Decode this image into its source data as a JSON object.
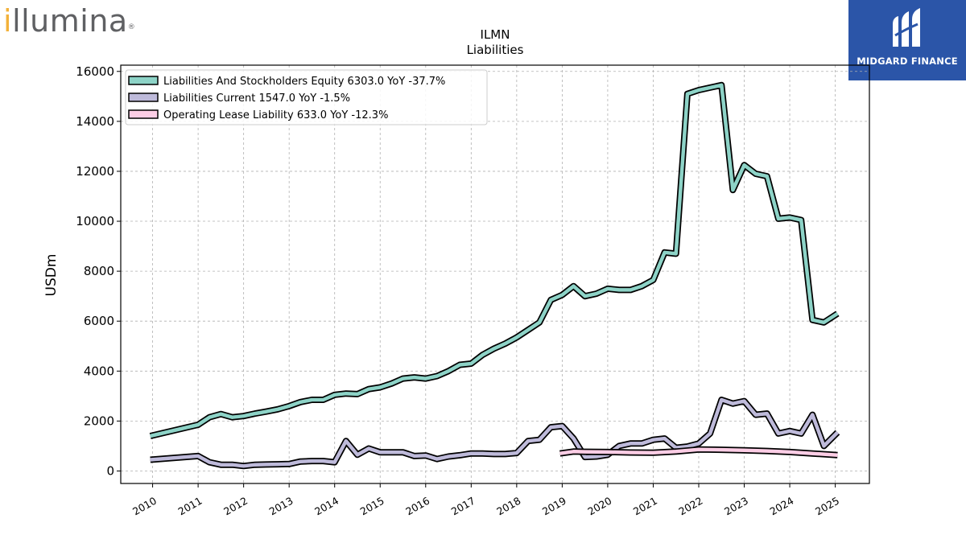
{
  "logos": {
    "left": {
      "text_dot": "i",
      "text_rest": "llumina",
      "mark": "®"
    },
    "right": {
      "text": "MIDGARD FINANCE"
    }
  },
  "chart_data": {
    "type": "line",
    "title": "ILMN",
    "subtitle": "Liabilities",
    "xlabel": "",
    "ylabel": "USDm",
    "xlim": [
      2009.3,
      2025.75
    ],
    "ylim": [
      -500,
      16250
    ],
    "yticks": [
      0,
      2000,
      4000,
      6000,
      8000,
      10000,
      12000,
      14000,
      16000
    ],
    "xticks": [
      "2010",
      "2011",
      "2012",
      "2013",
      "2014",
      "2015",
      "2016",
      "2017",
      "2018",
      "2019",
      "2020",
      "2021",
      "2022",
      "2023",
      "2024",
      "2025"
    ],
    "grid": true,
    "legend_position": "top-left",
    "series": [
      {
        "name": "Liabilities And Stockholders Equity",
        "legend_label": "Liabilities And Stockholders Equity  6303.0 YoY -37.7%",
        "color": "#8dd3c7",
        "points": [
          [
            2009.95,
            1400
          ],
          [
            2011.0,
            1850
          ],
          [
            2011.25,
            2150
          ],
          [
            2011.5,
            2280
          ],
          [
            2011.75,
            2150
          ],
          [
            2012.0,
            2200
          ],
          [
            2012.25,
            2300
          ],
          [
            2012.5,
            2380
          ],
          [
            2012.75,
            2470
          ],
          [
            2013.0,
            2600
          ],
          [
            2013.25,
            2760
          ],
          [
            2013.5,
            2850
          ],
          [
            2013.75,
            2850
          ],
          [
            2014.0,
            3050
          ],
          [
            2014.25,
            3100
          ],
          [
            2014.5,
            3080
          ],
          [
            2014.75,
            3280
          ],
          [
            2015.0,
            3350
          ],
          [
            2015.25,
            3500
          ],
          [
            2015.5,
            3700
          ],
          [
            2015.75,
            3750
          ],
          [
            2016.0,
            3700
          ],
          [
            2016.25,
            3800
          ],
          [
            2016.5,
            4000
          ],
          [
            2016.75,
            4250
          ],
          [
            2017.0,
            4300
          ],
          [
            2017.25,
            4650
          ],
          [
            2017.5,
            4900
          ],
          [
            2017.75,
            5100
          ],
          [
            2018.0,
            5350
          ],
          [
            2018.25,
            5650
          ],
          [
            2018.5,
            5950
          ],
          [
            2018.75,
            6850
          ],
          [
            2019.0,
            7050
          ],
          [
            2019.25,
            7400
          ],
          [
            2019.5,
            7000
          ],
          [
            2019.75,
            7100
          ],
          [
            2020.0,
            7300
          ],
          [
            2020.25,
            7250
          ],
          [
            2020.5,
            7250
          ],
          [
            2020.75,
            7400
          ],
          [
            2021.0,
            7650
          ],
          [
            2021.25,
            8750
          ],
          [
            2021.5,
            8700
          ],
          [
            2021.75,
            15100
          ],
          [
            2022.0,
            15250
          ],
          [
            2022.25,
            15350
          ],
          [
            2022.5,
            15450
          ],
          [
            2022.75,
            11250
          ],
          [
            2023.0,
            12250
          ],
          [
            2023.25,
            11900
          ],
          [
            2023.5,
            11800
          ],
          [
            2023.75,
            10100
          ],
          [
            2024.0,
            10150
          ],
          [
            2024.25,
            10050
          ],
          [
            2024.5,
            6050
          ],
          [
            2024.75,
            5950
          ],
          [
            2025.05,
            6303
          ]
        ]
      },
      {
        "name": "Liabilities Current",
        "legend_label": "Liabilities Current  1547.0 YoY -1.5%",
        "color": "#bebada",
        "points": [
          [
            2009.95,
            450
          ],
          [
            2011.0,
            600
          ],
          [
            2011.25,
            350
          ],
          [
            2011.5,
            250
          ],
          [
            2011.75,
            250
          ],
          [
            2012.0,
            200
          ],
          [
            2012.25,
            250
          ],
          [
            2012.5,
            260
          ],
          [
            2012.75,
            270
          ],
          [
            2013.0,
            280
          ],
          [
            2013.25,
            380
          ],
          [
            2013.5,
            400
          ],
          [
            2013.75,
            400
          ],
          [
            2014.0,
            350
          ],
          [
            2014.25,
            1200
          ],
          [
            2014.5,
            650
          ],
          [
            2014.75,
            900
          ],
          [
            2015.0,
            750
          ],
          [
            2015.25,
            750
          ],
          [
            2015.5,
            750
          ],
          [
            2015.75,
            600
          ],
          [
            2016.0,
            620
          ],
          [
            2016.25,
            480
          ],
          [
            2016.5,
            580
          ],
          [
            2016.75,
            630
          ],
          [
            2017.0,
            700
          ],
          [
            2017.25,
            700
          ],
          [
            2017.5,
            680
          ],
          [
            2017.75,
            680
          ],
          [
            2018.0,
            720
          ],
          [
            2018.25,
            1200
          ],
          [
            2018.5,
            1250
          ],
          [
            2018.75,
            1750
          ],
          [
            2019.0,
            1800
          ],
          [
            2019.25,
            1300
          ],
          [
            2019.5,
            560
          ],
          [
            2019.75,
            580
          ],
          [
            2020.0,
            650
          ],
          [
            2020.25,
            1000
          ],
          [
            2020.5,
            1100
          ],
          [
            2020.75,
            1100
          ],
          [
            2021.0,
            1250
          ],
          [
            2021.25,
            1300
          ],
          [
            2021.5,
            930
          ],
          [
            2021.75,
            980
          ],
          [
            2022.0,
            1100
          ],
          [
            2022.25,
            1500
          ],
          [
            2022.5,
            2850
          ],
          [
            2022.75,
            2700
          ],
          [
            2023.0,
            2800
          ],
          [
            2023.25,
            2250
          ],
          [
            2023.5,
            2300
          ],
          [
            2023.75,
            1500
          ],
          [
            2024.0,
            1600
          ],
          [
            2024.25,
            1500
          ],
          [
            2024.5,
            2250
          ],
          [
            2024.75,
            1000
          ],
          [
            2025.05,
            1547
          ]
        ]
      },
      {
        "name": "Operating Lease Liability",
        "legend_label": "Operating Lease Liability  633.0 YoY -12.3%",
        "color": "#fccde5",
        "points": [
          [
            2018.95,
            700
          ],
          [
            2019.25,
            780
          ],
          [
            2019.5,
            770
          ],
          [
            2020.0,
            760
          ],
          [
            2020.5,
            740
          ],
          [
            2021.0,
            730
          ],
          [
            2021.5,
            780
          ],
          [
            2022.0,
            860
          ],
          [
            2022.5,
            850
          ],
          [
            2023.0,
            830
          ],
          [
            2023.5,
            800
          ],
          [
            2024.0,
            760
          ],
          [
            2024.5,
            700
          ],
          [
            2025.05,
            633
          ]
        ]
      }
    ]
  }
}
